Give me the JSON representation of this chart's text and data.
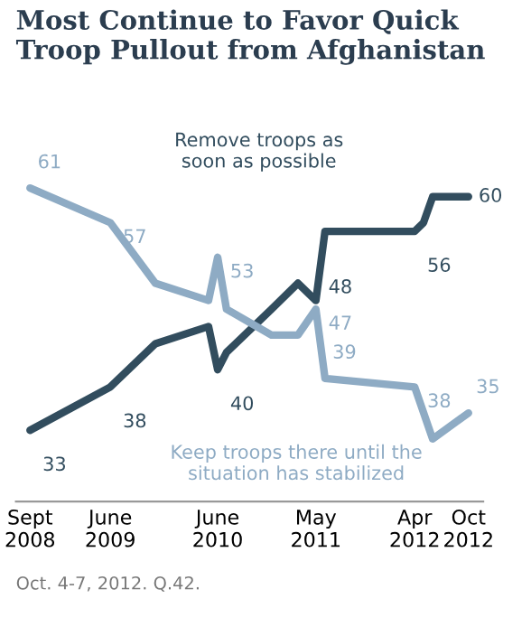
{
  "chart_data": {
    "type": "line",
    "title": "Most Continue to Favor Quick\nTroop Pullout from Afghanistan",
    "x": [
      "2008-09",
      "2009-06",
      "2009-11",
      "2010-05",
      "2010-06",
      "2010-07",
      "2010-12",
      "2011-03",
      "2011-05",
      "2011-06",
      "2012-04",
      "2012-05",
      "2012-06",
      "2012-10"
    ],
    "series": [
      {
        "name": "Remove troops as\nsoon as possible",
        "color": "#324d5e",
        "values": [
          33,
          38,
          43,
          45,
          40,
          42,
          47,
          50,
          48,
          56,
          56,
          57,
          60,
          60
        ],
        "value_labels": [
          "33",
          "38",
          null,
          null,
          "40",
          null,
          null,
          null,
          "48",
          null,
          "56",
          null,
          null,
          "60"
        ]
      },
      {
        "name": "Keep troops there until the\nsituation has stabilized",
        "color": "#8eabc4",
        "x": [
          "2008-09",
          "2009-06",
          "2009-11",
          "2010-05",
          "2010-06",
          "2010-07",
          "2010-12",
          "2011-03",
          "2011-05",
          "2011-06",
          "2012-04",
          "2012-06",
          "2012-10"
        ],
        "values": [
          61,
          57,
          50,
          48,
          53,
          47,
          44,
          44,
          47,
          39,
          38,
          32,
          35
        ],
        "value_labels": [
          "61",
          "57",
          null,
          null,
          "53",
          null,
          null,
          null,
          "47",
          "39",
          "38",
          null,
          "35"
        ]
      }
    ],
    "xlim": [
      "2008-07-15",
      "2012-11-20"
    ],
    "xticks": [
      {
        "value": "2008-09",
        "label": "Sept\n2008"
      },
      {
        "value": "2009-06",
        "label": "June\n2009"
      },
      {
        "value": "2010-06",
        "label": "June\n2010"
      },
      {
        "value": "2011-05",
        "label": "May\n2011"
      },
      {
        "value": "2012-04",
        "label": "Apr\n2012"
      },
      {
        "value": "2012-10",
        "label": "Oct\n2012"
      }
    ],
    "tick_labels": "x",
    "grid": false,
    "legend": false,
    "annotations": [
      "Oct. 4-7, 2012. Q.42."
    ]
  }
}
